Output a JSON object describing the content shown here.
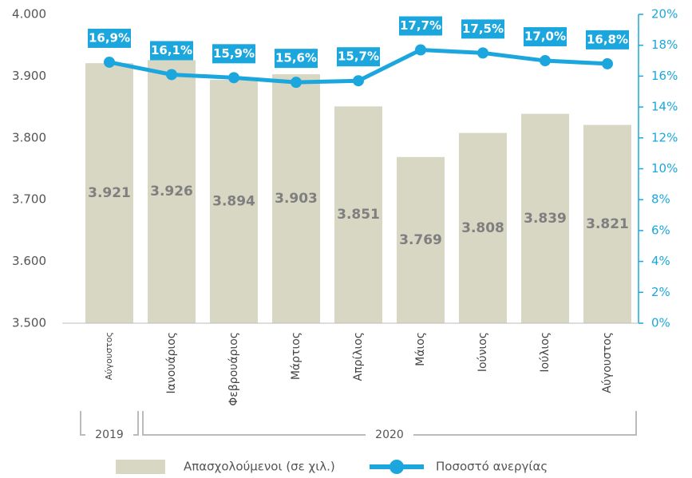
{
  "chart_data": {
    "type": "bar_line",
    "categories": [
      "Αύγουστος",
      "Ιανουάριος",
      "Φεβρουάριος",
      "Μάρτιος",
      "Απρίλιος",
      "Μάιος",
      "Ιούνιος",
      "Ιούλιος",
      "Αύγουστος"
    ],
    "series": [
      {
        "name": "Απασχολούμενοι (σε χιλ.)",
        "type": "bar",
        "color": "#d8d7c3",
        "values": [
          3921,
          3926,
          3894,
          3903,
          3851,
          3769,
          3808,
          3839,
          3821
        ],
        "value_labels": [
          "3.921",
          "3.926",
          "3.894",
          "3.903",
          "3.851",
          "3.769",
          "3.808",
          "3.839",
          "3.821"
        ]
      },
      {
        "name": "Ποσοστό ανεργίας",
        "type": "line",
        "axis": "y2",
        "color": "#1ba7de",
        "values": [
          16.9,
          16.1,
          15.9,
          15.6,
          15.7,
          17.7,
          17.5,
          17.0,
          16.8
        ],
        "value_labels": [
          "16,9%",
          "16,1%",
          "15,9%",
          "15,6%",
          "15,7%",
          "17,7%",
          "17,5%",
          "17,0%",
          "16,8%"
        ]
      }
    ],
    "ylim": [
      3500,
      4000
    ],
    "yticks": [
      {
        "value": 3500,
        "label": "3.500"
      },
      {
        "value": 3600,
        "label": "3.600"
      },
      {
        "value": 3700,
        "label": "3.700"
      },
      {
        "value": 3800,
        "label": "3.800"
      },
      {
        "value": 3900,
        "label": "3.900"
      },
      {
        "value": 4000,
        "label": "4.000"
      }
    ],
    "y2lim": [
      0,
      20
    ],
    "y2ticks": [
      {
        "value": 0,
        "label": "0%"
      },
      {
        "value": 2,
        "label": "2%"
      },
      {
        "value": 4,
        "label": "4%"
      },
      {
        "value": 6,
        "label": "6%"
      },
      {
        "value": 8,
        "label": "8%"
      },
      {
        "value": 10,
        "label": "10%"
      },
      {
        "value": 12,
        "label": "12%"
      },
      {
        "value": 14,
        "label": "14%"
      },
      {
        "value": 16,
        "label": "16%"
      },
      {
        "value": 18,
        "label": "18%"
      },
      {
        "value": 20,
        "label": "20%"
      }
    ],
    "year_groups": [
      {
        "label": "2019",
        "first": 0,
        "last": 0
      },
      {
        "label": "2020",
        "first": 1,
        "last": 8
      }
    ],
    "legend": "bottom",
    "grid": false
  }
}
